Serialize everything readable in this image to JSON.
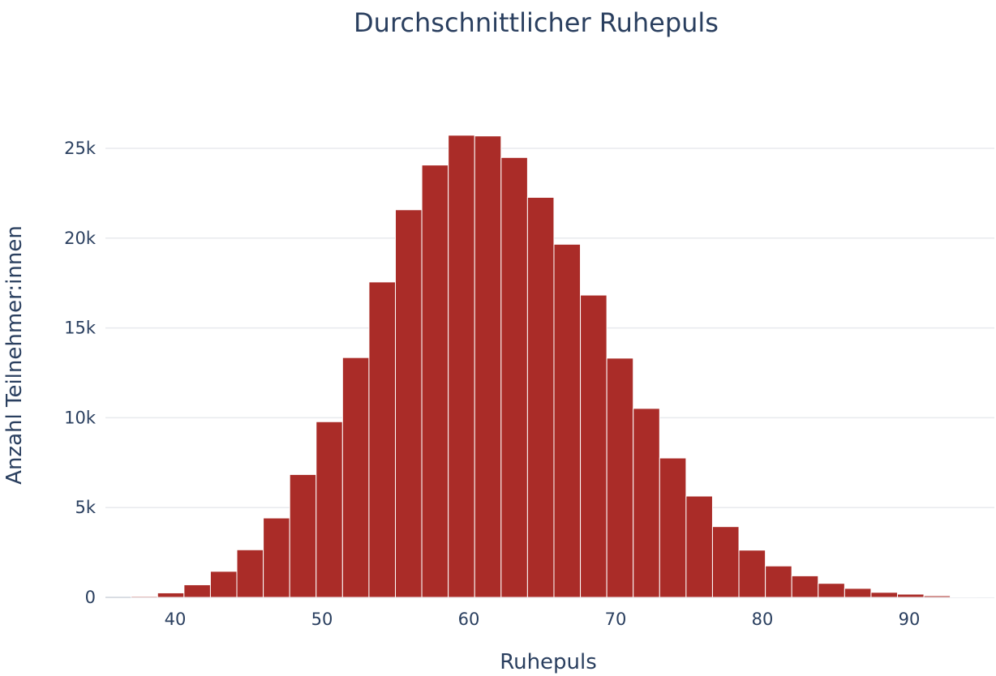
{
  "chart_data": {
    "type": "bar",
    "subtype": "histogram",
    "title": "Durchschnittlicher Ruhepuls",
    "xlabel": "Ruhepuls",
    "ylabel": "Anzahl Teilnehmer:innen",
    "bar_color": "#aa2c28",
    "text_color": "#2a3f5f",
    "grid": true,
    "legend": "none",
    "bin_width": 1.8,
    "bin_start": 37,
    "xlim": [
      35,
      96
    ],
    "ylim": [
      0,
      28000
    ],
    "x_ticks": [
      40,
      50,
      60,
      70,
      80,
      90
    ],
    "x_tick_labels": [
      "40",
      "50",
      "60",
      "70",
      "80",
      "90"
    ],
    "y_ticks": [
      0,
      5000,
      10000,
      15000,
      20000,
      25000
    ],
    "y_tick_labels": [
      "0",
      "5k",
      "10k",
      "15k",
      "20k",
      "25k"
    ],
    "values": [
      60,
      250,
      700,
      1450,
      2650,
      4420,
      6840,
      9780,
      13350,
      17560,
      21580,
      24070,
      25730,
      25690,
      24490,
      22270,
      19660,
      16830,
      13320,
      10520,
      7760,
      5640,
      3940,
      2630,
      1750,
      1200,
      780,
      500,
      280,
      180,
      90,
      40,
      20
    ]
  }
}
